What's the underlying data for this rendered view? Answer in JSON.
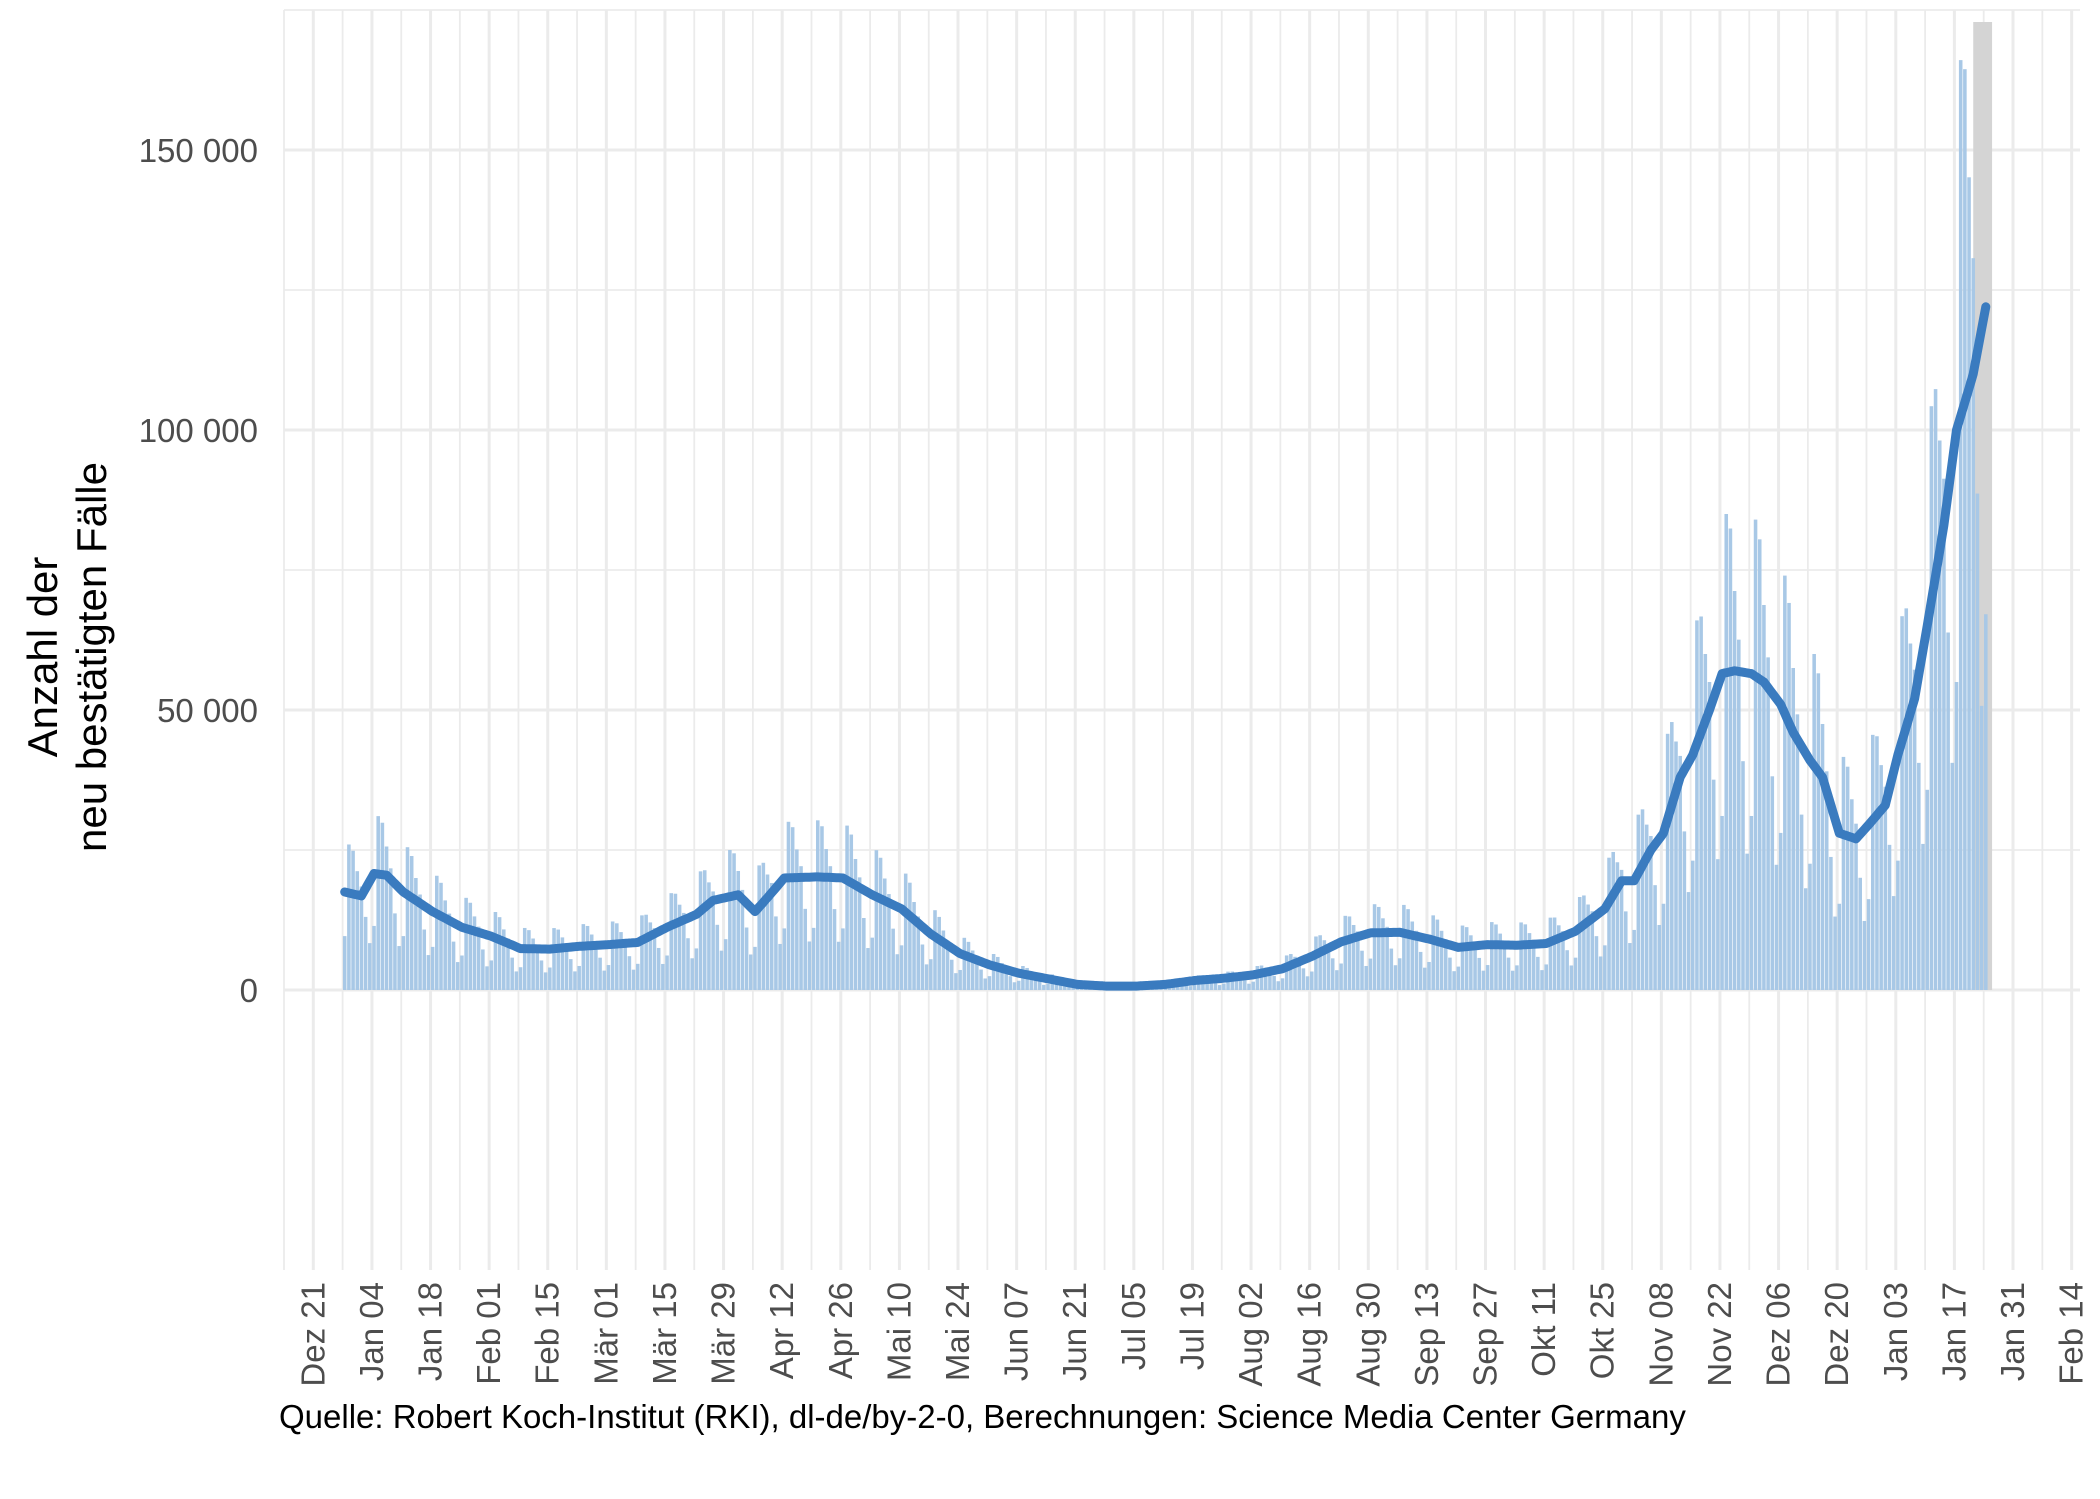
{
  "chart_data": {
    "type": "bar",
    "ylabel": [
      "Anzahl der",
      "neu bestätigten Fälle"
    ],
    "ylim": [
      -50000,
      175000
    ],
    "xlim": [
      "2020-12-14",
      "2022-02-16"
    ],
    "y_ticks": [
      {
        "value": 0,
        "label": "0"
      },
      {
        "value": 50000,
        "label": "50 000"
      },
      {
        "value": 100000,
        "label": "100 000"
      },
      {
        "value": 150000,
        "label": "150 000"
      }
    ],
    "x_ticks": [
      {
        "date": "2020-12-21",
        "label": "Dez 21"
      },
      {
        "date": "2021-01-04",
        "label": "Jan 04"
      },
      {
        "date": "2021-01-18",
        "label": "Jan 18"
      },
      {
        "date": "2021-02-01",
        "label": "Feb 01"
      },
      {
        "date": "2021-02-15",
        "label": "Feb 15"
      },
      {
        "date": "2021-03-01",
        "label": "Mär 01"
      },
      {
        "date": "2021-03-15",
        "label": "Mär 15"
      },
      {
        "date": "2021-03-29",
        "label": "Mär 29"
      },
      {
        "date": "2021-04-12",
        "label": "Apr 12"
      },
      {
        "date": "2021-04-26",
        "label": "Apr 26"
      },
      {
        "date": "2021-05-10",
        "label": "Mai 10"
      },
      {
        "date": "2021-05-24",
        "label": "Mai 24"
      },
      {
        "date": "2021-06-07",
        "label": "Jun 07"
      },
      {
        "date": "2021-06-21",
        "label": "Jun 21"
      },
      {
        "date": "2021-07-05",
        "label": "Jul 05"
      },
      {
        "date": "2021-07-19",
        "label": "Jul 19"
      },
      {
        "date": "2021-08-02",
        "label": "Aug 02"
      },
      {
        "date": "2021-08-16",
        "label": "Aug 16"
      },
      {
        "date": "2021-08-30",
        "label": "Aug 30"
      },
      {
        "date": "2021-09-13",
        "label": "Sep 13"
      },
      {
        "date": "2021-09-27",
        "label": "Sep 27"
      },
      {
        "date": "2021-10-11",
        "label": "Okt 11"
      },
      {
        "date": "2021-10-25",
        "label": "Okt 25"
      },
      {
        "date": "2021-11-08",
        "label": "Nov 08"
      },
      {
        "date": "2021-11-22",
        "label": "Nov 22"
      },
      {
        "date": "2021-12-06",
        "label": "Dez 06"
      },
      {
        "date": "2021-12-20",
        "label": "Dez 20"
      },
      {
        "date": "2022-01-03",
        "label": "Jan 03"
      },
      {
        "date": "2022-01-17",
        "label": "Jan 17"
      },
      {
        "date": "2022-01-31",
        "label": "Jan 31"
      },
      {
        "date": "2022-02-14",
        "label": "Feb 14"
      }
    ],
    "highlight_range": [
      "2022-01-21",
      "2022-01-26"
    ],
    "series": [
      {
        "kind": "bar",
        "start_date": "2020-12-28",
        "weekly_pattern": [
          0.55,
          1.5,
          1.45,
          1.25,
          1.1,
          0.72,
          0.43
        ],
        "anchors": [
          [
            "2020-12-28",
            17500
          ],
          [
            "2021-01-01",
            16800
          ],
          [
            "2021-01-04",
            20800
          ],
          [
            "2021-01-07",
            20500
          ],
          [
            "2021-01-11",
            17500
          ],
          [
            "2021-01-18",
            14000
          ],
          [
            "2021-01-25",
            11200
          ],
          [
            "2021-02-01",
            9600
          ],
          [
            "2021-02-08",
            7400
          ],
          [
            "2021-02-15",
            7300
          ],
          [
            "2021-02-22",
            7800
          ],
          [
            "2021-03-01",
            8100
          ],
          [
            "2021-03-08",
            8500
          ],
          [
            "2021-03-15",
            11200
          ],
          [
            "2021-03-22",
            13500
          ],
          [
            "2021-03-26",
            16000
          ],
          [
            "2021-04-01",
            17000
          ],
          [
            "2021-04-05",
            14000
          ],
          [
            "2021-04-08",
            16500
          ],
          [
            "2021-04-12",
            20000
          ],
          [
            "2021-04-20",
            20200
          ],
          [
            "2021-04-26",
            20000
          ],
          [
            "2021-05-03",
            17000
          ],
          [
            "2021-05-10",
            14500
          ],
          [
            "2021-05-17",
            10000
          ],
          [
            "2021-05-24",
            6500
          ],
          [
            "2021-05-31",
            4500
          ],
          [
            "2021-06-07",
            3000
          ],
          [
            "2021-06-14",
            2000
          ],
          [
            "2021-06-21",
            1000
          ],
          [
            "2021-06-28",
            700
          ],
          [
            "2021-07-05",
            700
          ],
          [
            "2021-07-12",
            1000
          ],
          [
            "2021-07-19",
            1700
          ],
          [
            "2021-07-26",
            2100
          ],
          [
            "2021-08-02",
            2700
          ],
          [
            "2021-08-09",
            3800
          ],
          [
            "2021-08-16",
            6000
          ],
          [
            "2021-08-23",
            8600
          ],
          [
            "2021-08-30",
            10200
          ],
          [
            "2021-09-06",
            10300
          ],
          [
            "2021-09-13",
            9100
          ],
          [
            "2021-09-20",
            7600
          ],
          [
            "2021-09-27",
            8100
          ],
          [
            "2021-10-04",
            8000
          ],
          [
            "2021-10-11",
            8300
          ],
          [
            "2021-10-18",
            10500
          ],
          [
            "2021-10-25",
            14500
          ],
          [
            "2021-10-29",
            19500
          ],
          [
            "2021-11-01",
            19500
          ],
          [
            "2021-11-05",
            25000
          ],
          [
            "2021-11-08",
            28000
          ],
          [
            "2021-11-12",
            38000
          ],
          [
            "2021-11-15",
            42000
          ],
          [
            "2021-11-19",
            50000
          ],
          [
            "2021-11-22",
            56500
          ],
          [
            "2021-11-25",
            57000
          ],
          [
            "2021-11-29",
            56500
          ],
          [
            "2021-12-02",
            55000
          ],
          [
            "2021-12-06",
            51000
          ],
          [
            "2021-12-09",
            46000
          ],
          [
            "2021-12-13",
            41000
          ],
          [
            "2021-12-16",
            38000
          ],
          [
            "2021-12-20",
            28000
          ],
          [
            "2021-12-24",
            27000
          ],
          [
            "2021-12-27",
            29500
          ],
          [
            "2021-12-31",
            33000
          ],
          [
            "2022-01-03",
            42000
          ],
          [
            "2022-01-07",
            52000
          ],
          [
            "2022-01-10",
            65000
          ],
          [
            "2022-01-14",
            83000
          ],
          [
            "2022-01-17",
            100000
          ],
          [
            "2022-01-21",
            110000
          ],
          [
            "2022-01-24",
            122000
          ]
        ]
      },
      {
        "kind": "line",
        "color": "#3a7bbf",
        "start_date": "2020-12-28",
        "anchors": [
          [
            "2020-12-28",
            17500
          ],
          [
            "2021-01-01",
            16800
          ],
          [
            "2021-01-04",
            20800
          ],
          [
            "2021-01-07",
            20500
          ],
          [
            "2021-01-11",
            17500
          ],
          [
            "2021-01-18",
            14000
          ],
          [
            "2021-01-25",
            11200
          ],
          [
            "2021-02-01",
            9600
          ],
          [
            "2021-02-08",
            7400
          ],
          [
            "2021-02-15",
            7300
          ],
          [
            "2021-02-22",
            7800
          ],
          [
            "2021-03-01",
            8100
          ],
          [
            "2021-03-08",
            8500
          ],
          [
            "2021-03-15",
            11200
          ],
          [
            "2021-03-22",
            13500
          ],
          [
            "2021-03-26",
            16000
          ],
          [
            "2021-04-01",
            17000
          ],
          [
            "2021-04-05",
            14000
          ],
          [
            "2021-04-08",
            16500
          ],
          [
            "2021-04-12",
            20000
          ],
          [
            "2021-04-20",
            20200
          ],
          [
            "2021-04-26",
            20000
          ],
          [
            "2021-05-03",
            17000
          ],
          [
            "2021-05-10",
            14500
          ],
          [
            "2021-05-17",
            10000
          ],
          [
            "2021-05-24",
            6500
          ],
          [
            "2021-05-31",
            4500
          ],
          [
            "2021-06-07",
            3000
          ],
          [
            "2021-06-14",
            2000
          ],
          [
            "2021-06-21",
            1000
          ],
          [
            "2021-06-28",
            700
          ],
          [
            "2021-07-05",
            700
          ],
          [
            "2021-07-12",
            1000
          ],
          [
            "2021-07-19",
            1700
          ],
          [
            "2021-07-26",
            2100
          ],
          [
            "2021-08-02",
            2700
          ],
          [
            "2021-08-09",
            3800
          ],
          [
            "2021-08-16",
            6000
          ],
          [
            "2021-08-23",
            8600
          ],
          [
            "2021-08-30",
            10200
          ],
          [
            "2021-09-06",
            10300
          ],
          [
            "2021-09-13",
            9100
          ],
          [
            "2021-09-20",
            7600
          ],
          [
            "2021-09-27",
            8100
          ],
          [
            "2021-10-04",
            8000
          ],
          [
            "2021-10-11",
            8300
          ],
          [
            "2021-10-18",
            10500
          ],
          [
            "2021-10-25",
            14500
          ],
          [
            "2021-10-29",
            19500
          ],
          [
            "2021-11-01",
            19500
          ],
          [
            "2021-11-05",
            25000
          ],
          [
            "2021-11-08",
            28000
          ],
          [
            "2021-11-12",
            38000
          ],
          [
            "2021-11-15",
            42000
          ],
          [
            "2021-11-19",
            50000
          ],
          [
            "2021-11-22",
            56500
          ],
          [
            "2021-11-25",
            57000
          ],
          [
            "2021-11-29",
            56500
          ],
          [
            "2021-12-02",
            55000
          ],
          [
            "2021-12-06",
            51000
          ],
          [
            "2021-12-09",
            46000
          ],
          [
            "2021-12-13",
            41000
          ],
          [
            "2021-12-16",
            38000
          ],
          [
            "2021-12-20",
            28000
          ],
          [
            "2021-12-24",
            27000
          ],
          [
            "2021-12-27",
            29500
          ],
          [
            "2021-12-31",
            33000
          ],
          [
            "2022-01-03",
            42000
          ],
          [
            "2022-01-07",
            52000
          ],
          [
            "2022-01-10",
            65000
          ],
          [
            "2022-01-14",
            83000
          ],
          [
            "2022-01-17",
            100000
          ],
          [
            "2022-01-21",
            110000
          ],
          [
            "2022-01-24",
            122000
          ]
        ]
      }
    ],
    "grid": true,
    "colors": {
      "bars": "#a8c8e6",
      "line": "#3a7bbf",
      "highlight": "#d4d4d4",
      "grid": "#ebebeb"
    }
  },
  "caption": "Quelle: Robert Koch-Institut (RKI), dl-de/by-2-0, Berechnungen: Science Media Center Germany"
}
